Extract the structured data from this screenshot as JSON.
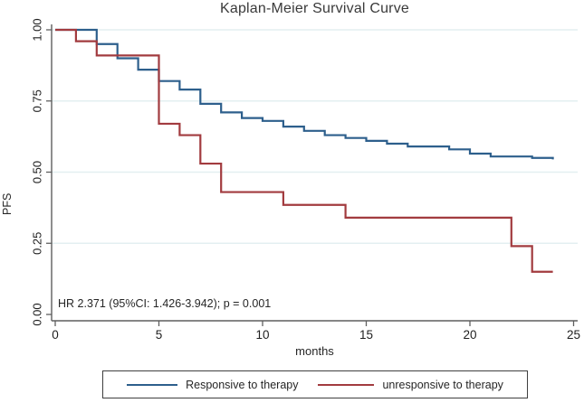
{
  "title": "Kaplan-Meier Survival Curve",
  "annotation": "HR 2.371 (95%CI: 1.426-3.942); p = 0.001",
  "colors": {
    "responsive_line": "#2d5f8c",
    "unresponsive_line": "#a23b3f",
    "gridline": "#e3eff1",
    "axis": "#5f5f5f",
    "tick_text": "#1f1f1f"
  },
  "legend": {
    "items": [
      {
        "label": "Responsive to therapy",
        "color": "#2d5f8c"
      },
      {
        "label": "unresponsive to therapy",
        "color": "#a23b3f"
      }
    ]
  },
  "chart_data": {
    "type": "line",
    "subtype": "kaplan-meier-step",
    "title": "Kaplan-Meier Survival Curve",
    "xlabel": "months",
    "ylabel": "PFS",
    "xlim": [
      0,
      25
    ],
    "ylim": [
      0,
      1
    ],
    "x_ticks": [
      0,
      5,
      10,
      15,
      20,
      25
    ],
    "y_ticks": [
      0.0,
      0.25,
      0.5,
      0.75,
      1.0
    ],
    "y_tick_labels": [
      "0.00",
      "0.25",
      "0.50",
      "0.75",
      "1.00"
    ],
    "grid": "horizontal",
    "legend_position": "bottom",
    "x_end": 24,
    "series": [
      {
        "name": "Responsive to therapy",
        "color": "#2d5f8c",
        "steps": [
          [
            0,
            1.0
          ],
          [
            2,
            0.95
          ],
          [
            3,
            0.9
          ],
          [
            4,
            0.86
          ],
          [
            5,
            0.82
          ],
          [
            6,
            0.79
          ],
          [
            7,
            0.74
          ],
          [
            8,
            0.71
          ],
          [
            9,
            0.69
          ],
          [
            10,
            0.68
          ],
          [
            11,
            0.66
          ],
          [
            12,
            0.645
          ],
          [
            13,
            0.63
          ],
          [
            14,
            0.62
          ],
          [
            15,
            0.61
          ],
          [
            16,
            0.6
          ],
          [
            17,
            0.59
          ],
          [
            19,
            0.58
          ],
          [
            20,
            0.565
          ],
          [
            21,
            0.555
          ],
          [
            23,
            0.55
          ],
          [
            24,
            0.545
          ]
        ]
      },
      {
        "name": "unresponsive to therapy",
        "color": "#a23b3f",
        "steps": [
          [
            0,
            1.0
          ],
          [
            1,
            0.96
          ],
          [
            2,
            0.91
          ],
          [
            5,
            0.67
          ],
          [
            6,
            0.63
          ],
          [
            7,
            0.53
          ],
          [
            8,
            0.43
          ],
          [
            11,
            0.385
          ],
          [
            14,
            0.34
          ],
          [
            22,
            0.24
          ],
          [
            23,
            0.15
          ]
        ]
      }
    ]
  }
}
